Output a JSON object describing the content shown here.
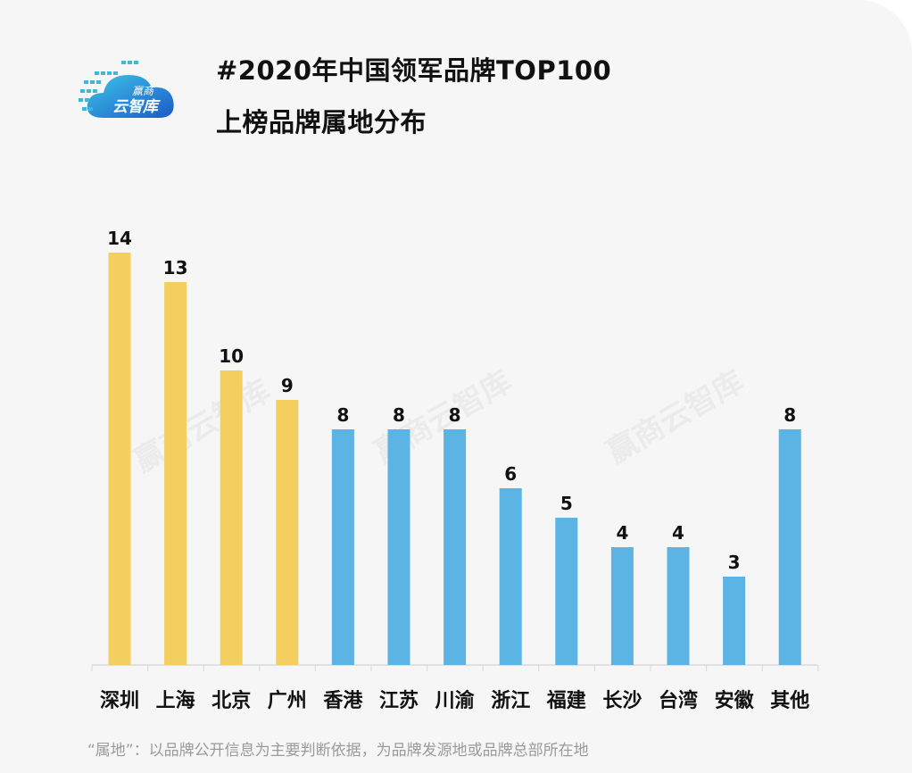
{
  "logo": {
    "line1": "赢商",
    "line2": "云智库"
  },
  "watermark": "赢商云智库",
  "footnote": "“属地”：以品牌公开信息为主要判断依据，为品牌发源地或品牌总部所在地",
  "colors": {
    "highlight": "#f2cf5f",
    "normal": "#5bb4e4",
    "background": "#f6f6f6"
  },
  "chart_data": {
    "type": "bar",
    "title": "#2020年中国领军品牌TOP100",
    "subtitle": "上榜品牌属地分布",
    "categories": [
      "深圳",
      "上海",
      "北京",
      "广州",
      "香港",
      "江苏",
      "川渝",
      "浙江",
      "福建",
      "长沙",
      "台湾",
      "安徽",
      "其他"
    ],
    "values": [
      14,
      13,
      10,
      9,
      8,
      8,
      8,
      6,
      5,
      4,
      4,
      3,
      8
    ],
    "highlighted": [
      true,
      true,
      true,
      true,
      false,
      false,
      false,
      false,
      false,
      false,
      false,
      false,
      false
    ],
    "ylim": [
      0,
      14
    ],
    "grid": false,
    "legend": "none",
    "data_labels": true
  }
}
